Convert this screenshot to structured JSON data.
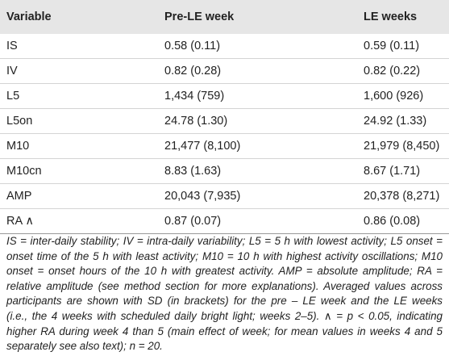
{
  "table": {
    "header": [
      "Variable",
      "Pre-LE week",
      "LE weeks"
    ],
    "rows": [
      [
        "IS",
        "0.58 (0.11)",
        "0.59 (0.11)"
      ],
      [
        "IV",
        "0.82 (0.28)",
        "0.82 (0.22)"
      ],
      [
        "L5",
        "1,434 (759)",
        "1,600 (926)"
      ],
      [
        "L5on",
        "24.78 (1.30)",
        "24.92 (1.33)"
      ],
      [
        "M10",
        "21,477 (8,100)",
        "21,979 (8,450)"
      ],
      [
        "M10cn",
        "8.83 (1.63)",
        "8.67 (1.71)"
      ],
      [
        "AMP",
        "20,043 (7,935)",
        "20,378 (8,271)"
      ],
      [
        "RA ∧",
        "0.87 (0.07)",
        "0.86 (0.08)"
      ]
    ]
  },
  "note": [
    "IS = inter-daily stability; IV = intra-daily variability; L5 = 5 h with lowest activity; L5 onset =",
    "onset time of the 5 h with least activity; M10 = 10 h with highest activity oscillations; M10",
    "onset = onset hours of the 10 h with greatest activity. AMP = absolute amplitude; RA =",
    "relative amplitude (see method section for more explanations). Averaged values across",
    "participants are shown with SD (in brackets) for the pre – LE week and the LE weeks",
    "(i.e., the 4 weeks with scheduled daily bright light; weeks 2–5). ∧ = p < 0.05, indicating",
    "higher RA during week 4 than 5 (main effect of week; for mean values in weeks 4 and 5",
    "separately see also text); n = 20."
  ]
}
